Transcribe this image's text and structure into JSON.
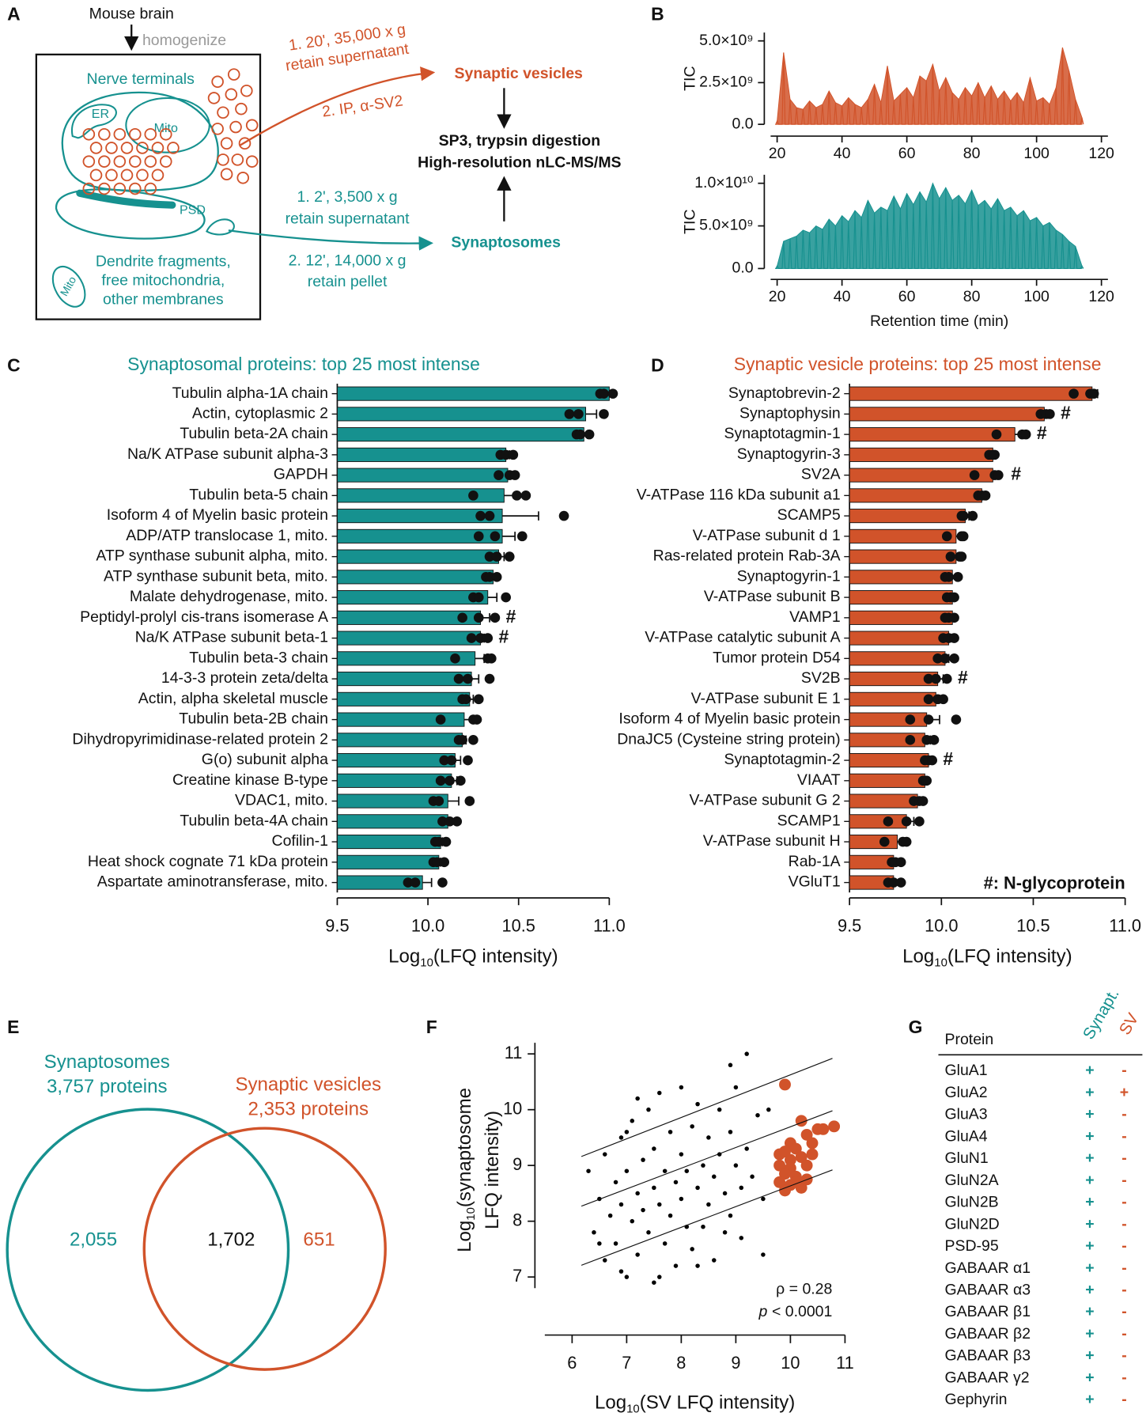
{
  "diagram": {
    "letter": "A",
    "source": "Mouse brain",
    "step": "homogenize",
    "nerve_terminals": "Nerve terminals",
    "er": "ER",
    "mito": "Mito",
    "psd": "PSD",
    "debris": [
      "Dendrite fragments,",
      "free mitochondria,",
      "other membranes"
    ],
    "mito_free": "Mito",
    "sv_route": [
      "1. 20', 35,000 x g",
      "retain supernatant",
      "2. IP, α-SV2"
    ],
    "sv_target": "Synaptic vesicles",
    "analysis": [
      "SP3, trypsin digestion",
      "High-resolution nLC-MS/MS"
    ],
    "syn_route": [
      "1. 2', 3,500 x g",
      "retain supernatant",
      "2. 12', 14,000 x g",
      "retain pellet"
    ],
    "syn_target": "Synaptosomes"
  },
  "chart_data": [
    {
      "type": "area",
      "panel": "B",
      "ylabel": "TIC",
      "color": "#d1532a",
      "xlim": [
        18,
        122
      ],
      "xticks": [
        20,
        40,
        60,
        80,
        100,
        120
      ],
      "ylim": [
        0,
        5500000000.0
      ],
      "yticks": [
        {
          "value": 0,
          "label": "0.0"
        },
        {
          "value": 2500000000.0,
          "label": "2.5×10⁹"
        },
        {
          "value": 5000000000.0,
          "label": "5.0×10⁹"
        }
      ],
      "x": [
        20,
        22,
        24,
        26,
        28,
        30,
        32,
        34,
        36,
        38,
        40,
        42,
        44,
        46,
        48,
        50,
        52,
        54,
        56,
        58,
        60,
        62,
        64,
        66,
        68,
        70,
        72,
        74,
        76,
        78,
        80,
        82,
        84,
        86,
        88,
        90,
        92,
        94,
        96,
        98,
        100,
        102,
        104,
        106,
        108,
        110,
        112,
        114
      ],
      "values": [
        200000000.0,
        4300000000.0,
        1500000000.0,
        1000000000.0,
        900000000.0,
        1400000000.0,
        1000000000.0,
        1200000000.0,
        2000000000.0,
        1300000000.0,
        1100000000.0,
        1600000000.0,
        1200000000.0,
        1000000000.0,
        1500000000.0,
        2400000000.0,
        1300000000.0,
        3500000000.0,
        1400000000.0,
        1800000000.0,
        2200000000.0,
        1600000000.0,
        2900000000.0,
        2600000000.0,
        3600000000.0,
        2000000000.0,
        2800000000.0,
        1900000000.0,
        1500000000.0,
        2200000000.0,
        1700000000.0,
        2500000000.0,
        1600000000.0,
        2300000000.0,
        1500000000.0,
        2000000000.0,
        1400000000.0,
        1900000000.0,
        1300000000.0,
        2800000000.0,
        1400000000.0,
        1600000000.0,
        1200000000.0,
        2200000000.0,
        4600000000.0,
        3200000000.0,
        1500000000.0,
        400000000.0
      ]
    },
    {
      "type": "area",
      "ylabel": "TIC",
      "xlabel": "Retention time (min)",
      "color": "#16918f",
      "xlim": [
        18,
        122
      ],
      "xticks": [
        20,
        40,
        60,
        80,
        100,
        120
      ],
      "ylim": [
        0,
        11000000000.0
      ],
      "yticks": [
        {
          "value": 0,
          "label": "0.0"
        },
        {
          "value": 5000000000.0,
          "label": "5.0×10⁹"
        },
        {
          "value": 10000000000.0,
          "label": "1.0×10¹⁰"
        }
      ],
      "x": [
        20,
        22,
        24,
        26,
        28,
        30,
        32,
        34,
        36,
        38,
        40,
        42,
        44,
        46,
        48,
        50,
        52,
        54,
        56,
        58,
        60,
        62,
        64,
        66,
        68,
        70,
        72,
        74,
        76,
        78,
        80,
        82,
        84,
        86,
        88,
        90,
        92,
        94,
        96,
        98,
        100,
        102,
        104,
        106,
        108,
        110,
        112,
        114
      ],
      "values": [
        300000000.0,
        3200000000.0,
        3500000000.0,
        3800000000.0,
        4500000000.0,
        4200000000.0,
        5000000000.0,
        4600000000.0,
        5800000000.0,
        5000000000.0,
        6200000000.0,
        5500000000.0,
        6800000000.0,
        6000000000.0,
        8000000000.0,
        6500000000.0,
        7200000000.0,
        6800000000.0,
        8500000000.0,
        7000000000.0,
        8800000000.0,
        7500000000.0,
        9000000000.0,
        7800000000.0,
        10000000000.0,
        8200000000.0,
        9500000000.0,
        8000000000.0,
        8600000000.0,
        7600000000.0,
        9200000000.0,
        7400000000.0,
        8000000000.0,
        7000000000.0,
        8200000000.0,
        6800000000.0,
        7200000000.0,
        6200000000.0,
        6800000000.0,
        5600000000.0,
        6000000000.0,
        5000000000.0,
        5400000000.0,
        4500000000.0,
        4000000000.0,
        3200000000.0,
        2600000000.0,
        300000000.0
      ]
    },
    {
      "type": "hbar",
      "panel": "C",
      "title": "Synaptosomal proteins: top 25 most intense",
      "color": "#16918f",
      "xlabel": [
        "Log",
        "10",
        "(LFQ intensity)"
      ],
      "xlim": [
        9.5,
        11
      ],
      "xticks": [
        9.5,
        {
          "value": 10,
          "label": "10.0"
        },
        10.5,
        {
          "value": 11,
          "label": "11.0"
        }
      ],
      "categories": [
        "Tubulin alpha-1A chain",
        "Actin, cytoplasmic 2",
        "Tubulin beta-2A chain",
        "Na/K ATPase subunit alpha-3",
        "GAPDH",
        "Tubulin beta-5 chain",
        "Isoform 4 of Myelin basic protein",
        "ADP/ATP translocase 1, mito.",
        "ATP synthase subunit alpha, mito.",
        "ATP synthase subunit beta, mito.",
        "Malate dehydrogenase, mito.",
        "Peptidyl-prolyl cis-trans isomerase A",
        "Na/K ATPase subunit beta-1",
        "Tubulin beta-3 chain",
        "14-3-3 protein zeta/delta",
        "Actin, alpha skeletal muscle",
        "Tubulin beta-2B chain",
        "Dihydropyrimidinase-related protein 2",
        "G(o) subunit alpha",
        "Creatine kinase B-type",
        "VDAC1, mito.",
        "Tubulin beta-4A chain",
        "Cofilin-1",
        "Heat shock cognate 71 kDa protein",
        "Aspartate aminotransferase, mito."
      ],
      "values": [
        11.0,
        10.87,
        10.86,
        10.43,
        10.44,
        10.42,
        10.41,
        10.41,
        10.39,
        10.36,
        10.33,
        10.29,
        10.29,
        10.26,
        10.24,
        10.23,
        10.2,
        10.19,
        10.15,
        10.13,
        10.11,
        10.11,
        10.07,
        10.06,
        9.97
      ],
      "errors": [
        0.02,
        0.06,
        0.02,
        0.02,
        0.02,
        0.08,
        0.2,
        0.07,
        0.03,
        0.02,
        0.05,
        0.05,
        0.02,
        0.05,
        0.04,
        0.02,
        0.05,
        0.02,
        0.03,
        0.03,
        0.06,
        0.02,
        0.01,
        0.01,
        0.05
      ],
      "points": [
        [
          10.95,
          10.97,
          11.02
        ],
        [
          10.78,
          10.83,
          10.97
        ],
        [
          10.82,
          10.84,
          10.89
        ],
        [
          10.4,
          10.43,
          10.47
        ],
        [
          10.39,
          10.45,
          10.48
        ],
        [
          10.25,
          10.49,
          10.54
        ],
        [
          10.29,
          10.34,
          10.75
        ],
        [
          10.28,
          10.37,
          10.52
        ],
        [
          10.34,
          10.38,
          10.45
        ],
        [
          10.32,
          10.34,
          10.38
        ],
        [
          10.25,
          10.28,
          10.43
        ],
        [
          10.19,
          10.28,
          10.37
        ],
        [
          10.24,
          10.29,
          10.33
        ],
        [
          10.15,
          10.33,
          10.35
        ],
        [
          10.17,
          10.22,
          10.34
        ],
        [
          10.19,
          10.21,
          10.28
        ],
        [
          10.07,
          10.25,
          10.27
        ],
        [
          10.17,
          10.19,
          10.25
        ],
        [
          10.09,
          10.13,
          10.22
        ],
        [
          10.07,
          10.12,
          10.18
        ],
        [
          10.03,
          10.06,
          10.23
        ],
        [
          10.08,
          10.12,
          10.16
        ],
        [
          10.04,
          10.06,
          10.1
        ],
        [
          10.03,
          10.05,
          10.09
        ],
        [
          9.89,
          9.93,
          10.08
        ]
      ],
      "point_labels": [
        null,
        null,
        null,
        null,
        null,
        null,
        null,
        null,
        null,
        null,
        null,
        "#",
        "#",
        null,
        null,
        null,
        null,
        null,
        null,
        null,
        null,
        null,
        null,
        null,
        null
      ]
    },
    {
      "type": "hbar",
      "panel": "D",
      "title": "Synaptic vesicle proteins: top 25 most intense",
      "color": "#d1532a",
      "xlabel": [
        "Log",
        "10",
        "(LFQ intensity)"
      ],
      "xlim": [
        9.5,
        11
      ],
      "xticks": [
        9.5,
        {
          "value": 10,
          "label": "10.0"
        },
        10.5,
        {
          "value": 11,
          "label": "11.0"
        }
      ],
      "note": "#: N-glycoprotein",
      "categories": [
        "Synaptobrevin-2",
        "Synaptophysin",
        "Synaptotagmin-1",
        "Synaptogyrin-3",
        "SV2A",
        "V-ATPase 116 kDa subunit a1",
        "SCAMP5",
        "V-ATPase subunit d 1",
        "Ras-related protein Rab-3A",
        "Synaptogyrin-1",
        "V-ATPase subunit B",
        "VAMP1",
        "V-ATPase catalytic subunit A",
        "Tumor protein D54",
        "SV2B",
        "V-ATPase subunit E 1",
        "Isoform 4 of Myelin basic protein",
        "DnaJC5 (Cysteine string protein)",
        "Synaptotagmin-2",
        "VIAAT",
        "V-ATPase subunit G 2",
        "SCAMP1",
        "V-ATPase subunit H",
        "Rab-1A",
        "VGluT1"
      ],
      "values": [
        10.82,
        10.56,
        10.4,
        10.28,
        10.28,
        10.22,
        10.13,
        10.08,
        10.08,
        10.06,
        10.06,
        10.06,
        10.04,
        10.02,
        9.98,
        9.97,
        9.92,
        9.91,
        9.93,
        9.91,
        9.87,
        9.81,
        9.76,
        9.74,
        9.74
      ],
      "errors": [
        0.03,
        0.02,
        0.05,
        0.01,
        0.04,
        0.01,
        0.02,
        0.03,
        0.02,
        0.02,
        0.01,
        0.01,
        0.02,
        0.02,
        0.03,
        0.02,
        0.07,
        0.03,
        0.01,
        0.01,
        0.01,
        0.04,
        0.04,
        0.01,
        0.01
      ],
      "points": [
        [
          10.72,
          10.81,
          10.83
        ],
        [
          10.54,
          10.57,
          10.59
        ],
        [
          10.3,
          10.44,
          10.46
        ],
        [
          10.26,
          10.28,
          10.29
        ],
        [
          10.18,
          10.29,
          10.31
        ],
        [
          10.2,
          10.22,
          10.24
        ],
        [
          10.11,
          10.12,
          10.17
        ],
        [
          10.03,
          10.11,
          10.12
        ],
        [
          10.05,
          10.1,
          10.11
        ],
        [
          10.02,
          10.04,
          10.09
        ],
        [
          10.03,
          10.05,
          10.07
        ],
        [
          10.02,
          10.04,
          10.07
        ],
        [
          10.01,
          10.04,
          10.07
        ],
        [
          9.98,
          10.02,
          10.07
        ],
        [
          9.93,
          9.97,
          10.03
        ],
        [
          9.93,
          9.98,
          10.01
        ],
        [
          9.83,
          9.93,
          10.08
        ],
        [
          9.83,
          9.92,
          9.96
        ],
        [
          9.91,
          9.93,
          9.95
        ],
        [
          9.9,
          9.91,
          9.92
        ],
        [
          9.85,
          9.88,
          9.9
        ],
        [
          9.71,
          9.81,
          9.88
        ],
        [
          9.69,
          9.79,
          9.81
        ],
        [
          9.73,
          9.75,
          9.78
        ],
        [
          9.71,
          9.74,
          9.78
        ]
      ],
      "point_labels": [
        null,
        "#",
        "#",
        null,
        "#",
        null,
        null,
        null,
        null,
        null,
        null,
        null,
        null,
        null,
        "#",
        null,
        null,
        null,
        "#",
        null,
        null,
        null,
        null,
        null,
        null
      ]
    },
    {
      "type": "scatter",
      "panel": "F",
      "xlabel": [
        "Log",
        "10",
        "(SV LFQ intensity)"
      ],
      "ylabel": [
        "Log",
        "10",
        "(synaptosome",
        "LFQ intensity)"
      ],
      "annotation": "ρ = 0.28",
      "p_value": [
        "p",
        "< 0.0001"
      ],
      "xlim": [
        5.5,
        11
      ],
      "xticks": [
        6,
        7,
        8,
        9,
        10,
        11
      ],
      "ylim": [
        6.8,
        11.2
      ],
      "yticks": [
        7,
        8,
        9,
        10,
        11
      ],
      "series": [
        {
          "color": "#000000",
          "x": [
            6.3,
            6.4,
            6.5,
            6.6,
            6.6,
            6.7,
            6.8,
            6.8,
            6.9,
            6.9,
            7.0,
            7.0,
            7.1,
            7.1,
            7.2,
            7.2,
            7.3,
            7.3,
            7.4,
            7.4,
            7.5,
            7.5,
            7.5,
            7.6,
            7.6,
            7.7,
            7.7,
            7.8,
            7.8,
            7.9,
            7.9,
            8.0,
            8.0,
            8.0,
            8.1,
            8.1,
            8.2,
            8.2,
            8.3,
            8.3,
            8.4,
            8.4,
            8.5,
            8.5,
            8.6,
            8.6,
            8.7,
            8.7,
            8.8,
            8.8,
            8.9,
            8.9,
            9.0,
            9.0,
            9.1,
            9.1,
            9.2,
            9.2,
            9.3,
            9.4,
            9.5,
            9.6,
            9.5,
            8.9,
            7.2,
            6.9,
            7.6,
            8.3,
            6.5,
            7.0
          ],
          "y": [
            8.9,
            7.8,
            8.4,
            9.2,
            7.3,
            8.1,
            8.7,
            7.6,
            9.5,
            8.3,
            7.0,
            8.9,
            8.0,
            9.8,
            8.5,
            7.4,
            9.1,
            8.2,
            10.0,
            7.8,
            8.6,
            9.3,
            6.9,
            8.3,
            10.3,
            8.9,
            7.6,
            9.6,
            8.1,
            8.7,
            7.2,
            9.2,
            8.4,
            10.4,
            7.9,
            8.9,
            9.7,
            7.5,
            8.6,
            10.1,
            9.0,
            7.9,
            8.3,
            9.5,
            8.8,
            7.3,
            10.0,
            9.2,
            8.5,
            7.8,
            9.6,
            8.1,
            9.0,
            10.4,
            8.6,
            7.7,
            9.3,
            11.0,
            8.8,
            9.9,
            8.4,
            10.0,
            7.4,
            10.8,
            10.2,
            7.1,
            7.0,
            7.2,
            7.6,
            9.6
          ]
        },
        {
          "color": "#d1532a",
          "x": [
            9.9,
            10.2,
            10.5,
            10.6,
            10.8,
            10.3,
            10.0,
            10.1,
            10.4,
            9.8,
            10.0,
            10.2,
            9.8,
            10.3,
            10.0,
            9.9,
            10.1,
            10.3,
            9.8,
            10.0,
            10.2,
            9.9,
            10.1,
            10.4,
            9.9
          ],
          "y": [
            10.45,
            9.8,
            9.65,
            9.65,
            9.7,
            9.55,
            9.4,
            9.3,
            9.4,
            9.2,
            9.1,
            9.15,
            9.0,
            9.0,
            8.95,
            8.85,
            8.8,
            8.75,
            8.7,
            8.65,
            8.6,
            8.55,
            8.7,
            9.2,
            9.25
          ]
        }
      ],
      "fit_lines": [
        {
          "x": [
            6.17,
            10.77
          ],
          "y": [
            9.16,
            10.92
          ]
        },
        {
          "x": [
            6.17,
            10.77
          ],
          "y": [
            8.27,
            9.98
          ]
        },
        {
          "x": [
            6.17,
            10.77
          ],
          "y": [
            7.21,
            8.92
          ]
        }
      ]
    }
  ],
  "venn": {
    "letter": "E",
    "sets": [
      {
        "name": "Synaptosomes",
        "count": "3,757 proteins",
        "only": "2,055",
        "color": "#16918f"
      },
      {
        "name": "Synaptic vesicles",
        "count": "2,353 proteins",
        "only": "651",
        "color": "#d1532a"
      }
    ],
    "overlap": "1,702"
  },
  "table": {
    "letter": "G",
    "header": [
      "Protein",
      "Synapt.",
      "SV"
    ],
    "rows": [
      [
        "GluA1",
        "+",
        "-"
      ],
      [
        "GluA2",
        "+",
        "+"
      ],
      [
        "GluA3",
        "+",
        "-"
      ],
      [
        "GluA4",
        "+",
        "-"
      ],
      [
        "GluN1",
        "+",
        "-"
      ],
      [
        "GluN2A",
        "+",
        "-"
      ],
      [
        "GluN2B",
        "+",
        "-"
      ],
      [
        "GluN2D",
        "+",
        "-"
      ],
      [
        "PSD-95",
        "+",
        "-"
      ],
      [
        "GABAAR α1",
        "+",
        "-"
      ],
      [
        "GABAAR α3",
        "+",
        "-"
      ],
      [
        "GABAAR β1",
        "+",
        "-"
      ],
      [
        "GABAAR β2",
        "+",
        "-"
      ],
      [
        "GABAAR β3",
        "+",
        "-"
      ],
      [
        "GABAAR γ2",
        "+",
        "-"
      ],
      [
        "Gephyrin",
        "+",
        "-"
      ]
    ]
  }
}
